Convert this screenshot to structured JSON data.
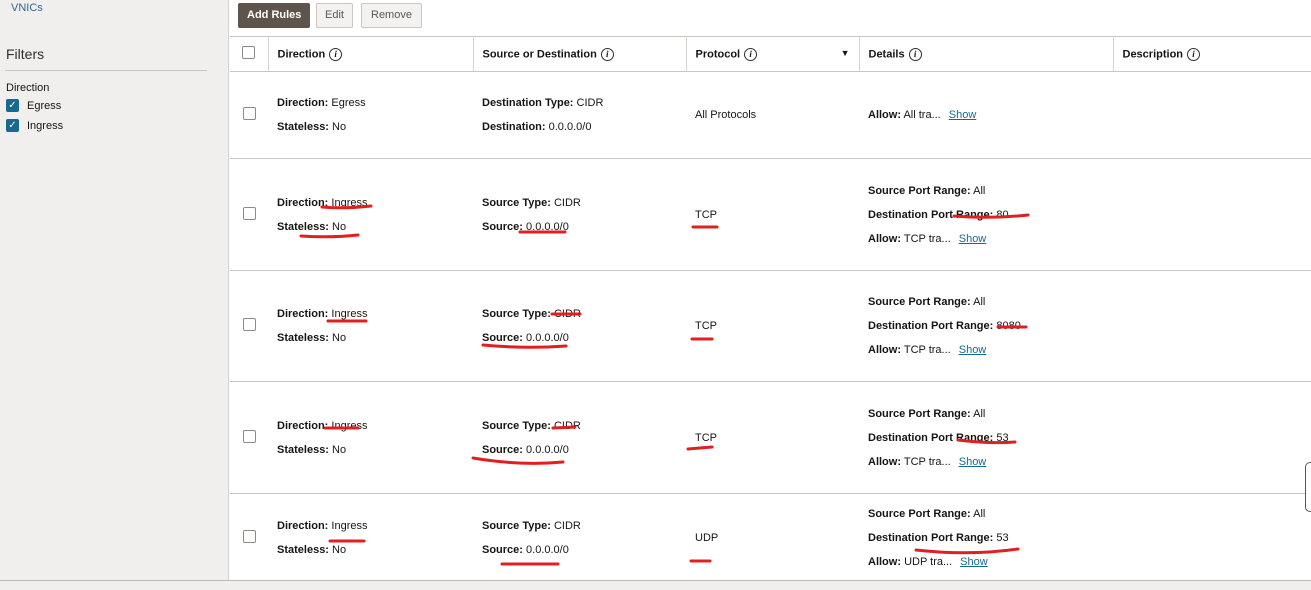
{
  "sidebar": {
    "link": "VNICs",
    "filters_title": "Filters",
    "direction_label": "Direction",
    "options": [
      {
        "label": "Egress",
        "checked": true
      },
      {
        "label": "Ingress",
        "checked": true
      }
    ]
  },
  "toolbar": {
    "add": "Add Rules",
    "edit": "Edit",
    "remove": "Remove"
  },
  "table": {
    "headers": [
      "Direction",
      "Source or Destination",
      "Protocol",
      "Details",
      "Description"
    ],
    "rows": [
      {
        "dir": "Egress",
        "stateless": "No",
        "st_label": "Destination Type:",
        "st": "CIDR",
        "src_label": "Destination:",
        "src": "0.0.0.0/0",
        "proto": "All Protocols",
        "spr": "",
        "dpr": "",
        "allow": "All tra...",
        "show": "Show"
      },
      {
        "dir": "Ingress",
        "stateless": "No",
        "st_label": "Source Type:",
        "st": "CIDR",
        "src_label": "Source:",
        "src": "0.0.0.0/0",
        "proto": "TCP",
        "spr": "All",
        "dpr": "80",
        "allow": "TCP tra...",
        "show": "Show"
      },
      {
        "dir": "Ingress",
        "stateless": "No",
        "st_label": "Source Type:",
        "st": "CIDR",
        "src_label": "Source:",
        "src": "0.0.0.0/0",
        "proto": "TCP",
        "spr": "All",
        "dpr": "8080",
        "allow": "TCP tra...",
        "show": "Show"
      },
      {
        "dir": "Ingress",
        "stateless": "No",
        "st_label": "Source Type:",
        "st": "CIDR",
        "src_label": "Source:",
        "src": "0.0.0.0/0",
        "proto": "TCP",
        "spr": "All",
        "dpr": "53",
        "allow": "TCP tra...",
        "show": "Show"
      },
      {
        "dir": "Ingress",
        "stateless": "No",
        "st_label": "Source Type:",
        "st": "CIDR",
        "src_label": "Source:",
        "src": "0.0.0.0/0",
        "proto": "UDP",
        "spr": "All",
        "dpr": "53",
        "allow": "UDP tra...",
        "show": "Show"
      }
    ]
  },
  "labels": {
    "direction": "Direction:",
    "stateless": "Stateless:",
    "spr": "Source Port Range:",
    "dpr": "Destination Port Range:",
    "allow": "Allow:"
  },
  "colors": {
    "accent": "#16698f",
    "primary_button": "#5e544c",
    "annotation": "#e02020"
  }
}
